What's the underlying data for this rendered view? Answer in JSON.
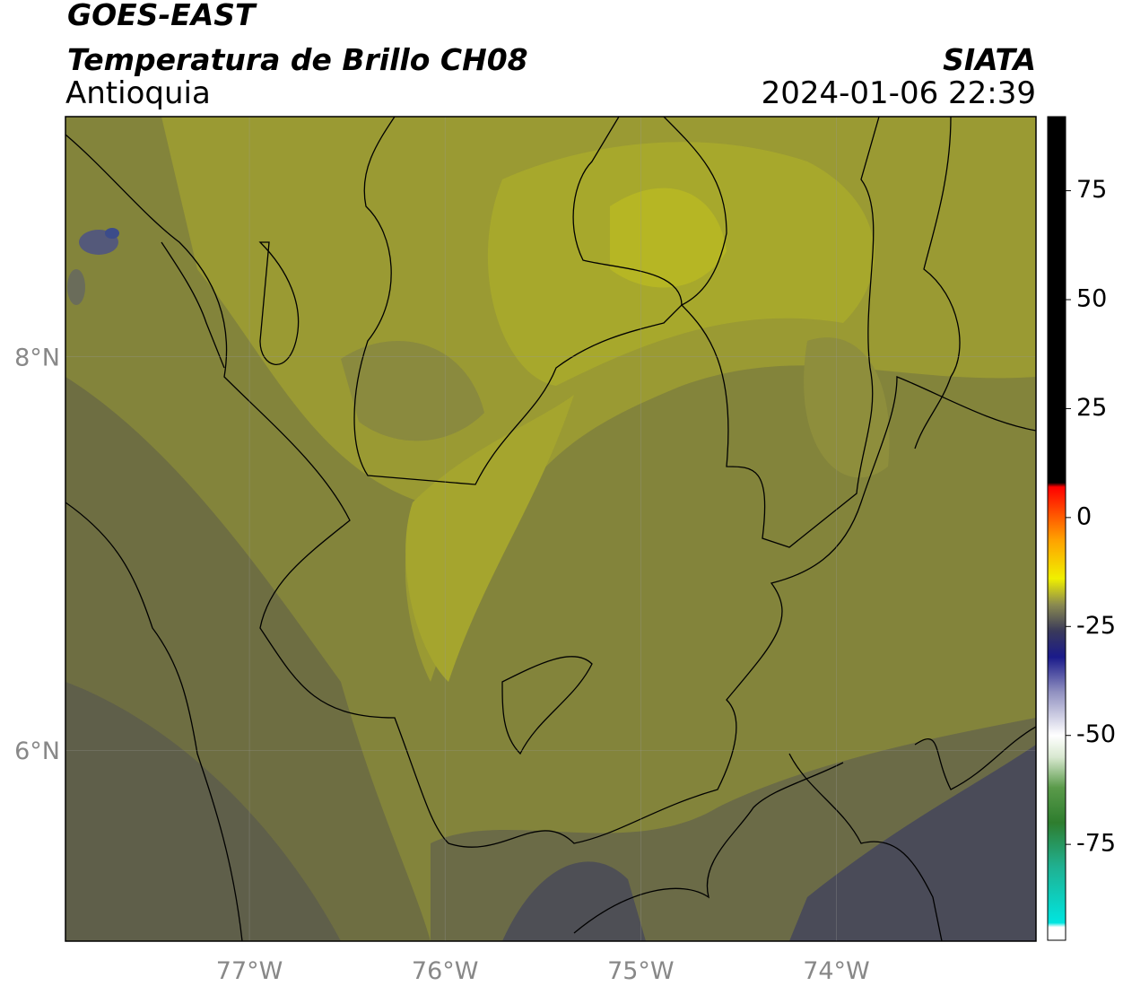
{
  "header": {
    "satellite": "GOES-EAST",
    "product": "Temperatura de Brillo CH08",
    "region": "Antioquia",
    "agency": "SIATA",
    "datetime": "2024-01-06 22:39"
  },
  "map": {
    "xlim": [
      -77.94,
      -72.98
    ],
    "ylim": [
      5.03,
      9.22
    ],
    "xticks": [
      {
        "value": -77,
        "label": "77°W"
      },
      {
        "value": -76,
        "label": "76°W"
      },
      {
        "value": -75,
        "label": "75°W"
      },
      {
        "value": -74,
        "label": "74°W"
      }
    ],
    "yticks": [
      {
        "value": 8,
        "label": "8°N"
      },
      {
        "value": 6,
        "label": "6°N"
      }
    ],
    "grid": true,
    "colorbar": {
      "lim": [
        -97,
        92
      ],
      "ticks": [
        75,
        50,
        25,
        0,
        -25,
        -50,
        -75
      ],
      "stops": [
        {
          "value": -97,
          "color": "#ffffff"
        },
        {
          "value": -94,
          "color": "#ffffff"
        },
        {
          "value": -93,
          "color": "#00e5e0"
        },
        {
          "value": -80,
          "color": "#20b090"
        },
        {
          "value": -70,
          "color": "#2e7d2e"
        },
        {
          "value": -62,
          "color": "#5a9a4a"
        },
        {
          "value": -55,
          "color": "#d8e8d0"
        },
        {
          "value": -50,
          "color": "#ffffff"
        },
        {
          "value": -40,
          "color": "#9090c0"
        },
        {
          "value": -32,
          "color": "#1a1a8a"
        },
        {
          "value": -26,
          "color": "#3a3a5a"
        },
        {
          "value": -20,
          "color": "#8a8a50"
        },
        {
          "value": -14,
          "color": "#f0f000"
        },
        {
          "value": -5,
          "color": "#ffa000"
        },
        {
          "value": 7,
          "color": "#ff0000"
        },
        {
          "value": 8,
          "color": "#000000"
        },
        {
          "value": 92,
          "color": "#000000"
        }
      ]
    }
  }
}
